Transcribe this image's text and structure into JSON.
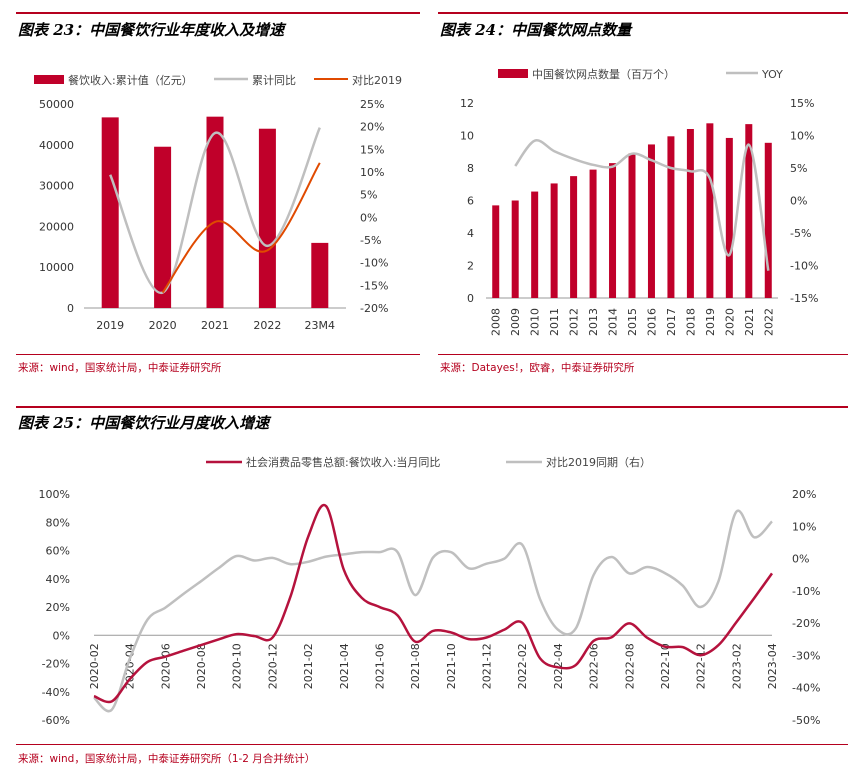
{
  "chart23": {
    "title": "图表 23：中国餐饮行业年度收入及增速",
    "source": "来源：wind，国家统计局，中泰证券研究所",
    "legend": [
      "餐饮收入:累计值（亿元）",
      "累计同比",
      "对比2019"
    ],
    "colors": {
      "bar": "#c0002a",
      "yoy": "#bfbfbf",
      "vs2019": "#e04a00"
    },
    "chart_data": {
      "type": "bar",
      "categories": [
        "2019",
        "2020",
        "2021",
        "2022",
        "23M4"
      ],
      "series": [
        {
          "name": "餐饮收入:累计值（亿元）",
          "type": "bar",
          "axis": "left",
          "values": [
            46721,
            39527,
            46895,
            43941,
            15959
          ]
        },
        {
          "name": "累计同比",
          "type": "line",
          "axis": "right",
          "values": [
            9.4,
            -16.6,
            18.6,
            -6.3,
            19.8
          ]
        },
        {
          "name": "对比2019",
          "type": "line",
          "axis": "right",
          "values": [
            null,
            -16.6,
            -1.0,
            -7.3,
            12.0
          ]
        }
      ],
      "ylim_left": [
        0,
        50000
      ],
      "yticks_left": [
        "0",
        "10000",
        "20000",
        "30000",
        "40000",
        "50000"
      ],
      "ylim_right": [
        -20,
        25
      ],
      "yticks_right": [
        "-20%",
        "-15%",
        "-10%",
        "-5%",
        "0%",
        "5%",
        "10%",
        "15%",
        "20%",
        "25%"
      ]
    }
  },
  "chart24": {
    "title": "图表 24：中国餐饮网点数量",
    "source": "来源：Datayes!，欧睿，中泰证券研究所",
    "legend": [
      "中国餐饮网点数量（百万个）",
      "YOY"
    ],
    "colors": {
      "bar": "#c0002a",
      "yoy": "#bfbfbf"
    },
    "chart_data": {
      "type": "bar",
      "categories": [
        "2008",
        "2009",
        "2010",
        "2011",
        "2012",
        "2013",
        "2014",
        "2015",
        "2016",
        "2017",
        "2018",
        "2019",
        "2020",
        "2021",
        "2022"
      ],
      "series": [
        {
          "name": "中国餐饮网点数量（百万个）",
          "type": "bar",
          "axis": "left",
          "values": [
            5.7,
            6.0,
            6.55,
            7.05,
            7.5,
            7.9,
            8.3,
            8.9,
            9.45,
            9.95,
            10.4,
            10.75,
            9.85,
            10.7,
            9.55
          ]
        },
        {
          "name": "YOY",
          "type": "line",
          "axis": "right",
          "values": [
            null,
            5.3,
            9.2,
            7.6,
            6.4,
            5.5,
            5.2,
            7.2,
            6.2,
            5.0,
            4.5,
            3.4,
            -8.4,
            8.6,
            -10.8
          ]
        }
      ],
      "ylim_left": [
        0,
        12
      ],
      "yticks_left": [
        "0",
        "2",
        "4",
        "6",
        "8",
        "10",
        "12"
      ],
      "ylim_right": [
        -15,
        15
      ],
      "yticks_right": [
        "-15%",
        "-10%",
        "-5%",
        "0%",
        "5%",
        "10%",
        "15%"
      ]
    }
  },
  "chart25": {
    "title": "图表 25：中国餐饮行业月度收入增速",
    "source": "来源：wind，国家统计局，中泰证券研究所（1-2 月合并统计）",
    "legend": [
      "社会消费品零售总额:餐饮收入:当月同比",
      "对比2019同期（右）"
    ],
    "colors": {
      "a": "#b5123d",
      "b": "#bfbfbf"
    },
    "chart_data": {
      "type": "line",
      "x": [
        "2020-02",
        "2020-03",
        "2020-04",
        "2020-05",
        "2020-06",
        "2020-07",
        "2020-08",
        "2020-09",
        "2020-10",
        "2020-11",
        "2020-12",
        "2021-01",
        "2021-02",
        "2021-03",
        "2021-04",
        "2021-05",
        "2021-06",
        "2021-07",
        "2021-08",
        "2021-09",
        "2021-10",
        "2021-11",
        "2021-12",
        "2022-01",
        "2022-02",
        "2022-03",
        "2022-04",
        "2022-05",
        "2022-06",
        "2022-07",
        "2022-08",
        "2022-09",
        "2022-10",
        "2022-11",
        "2022-12",
        "2023-01",
        "2023-02",
        "2023-03",
        "2023-04"
      ],
      "xticks": [
        "2020-02",
        "2020-04",
        "2020-06",
        "2020-08",
        "2020-10",
        "2020-12",
        "2021-02",
        "2021-04",
        "2021-06",
        "2021-08",
        "2021-10",
        "2021-12",
        "2022-02",
        "2022-04",
        "2022-06",
        "2022-08",
        "2022-10",
        "2022-12",
        "2023-02",
        "2023-04"
      ],
      "series": [
        {
          "name": "社会消费品零售总额:餐饮收入:当月同比",
          "axis": "left",
          "values": [
            -43.1,
            -46.8,
            -31.1,
            -18.9,
            -15.2,
            -11.0,
            -7.0,
            -2.9,
            0.8,
            -0.6,
            -1.7,
            27.0,
            69.6,
            91.6,
            46.4,
            26.6,
            20.0,
            14.3,
            -4.5,
            3.1,
            2.0,
            -2.7,
            -1.6,
            4.0,
            8.9,
            -16.4,
            -22.7,
            -21.1,
            -4.0,
            -1.5,
            8.4,
            -1.7,
            -8.1,
            -8.4,
            -14.1,
            -7.0,
            9.2,
            26.3,
            43.8
          ]
        },
        {
          "name": "对比2019同期（右）",
          "axis": "right",
          "values": [
            -43.1,
            -46.8,
            -31.1,
            -18.9,
            -15.2,
            -11.0,
            -7.0,
            -2.9,
            0.8,
            -0.6,
            0.2,
            -1.7,
            -1.0,
            0.6,
            1.3,
            2.0,
            2.0,
            2.1,
            -11.3,
            0.3,
            2.0,
            -3.0,
            -1.6,
            0.0,
            4.3,
            -12.6,
            -22.0,
            -21.7,
            -5.1,
            0.5,
            -4.6,
            -2.6,
            -4.5,
            -8.4,
            -15.0,
            -7.0,
            14.5,
            6.6,
            11.5
          ]
        }
      ],
      "ylim_left": [
        -60,
        100
      ],
      "yticks_left": [
        "-60%",
        "-40%",
        "-20%",
        "0%",
        "20%",
        "40%",
        "60%",
        "80%",
        "100%"
      ],
      "ylim_right": [
        -50,
        20
      ],
      "yticks_right": [
        "-50%",
        "-40%",
        "-30%",
        "-20%",
        "-10%",
        "0%",
        "10%",
        "20%"
      ]
    }
  }
}
